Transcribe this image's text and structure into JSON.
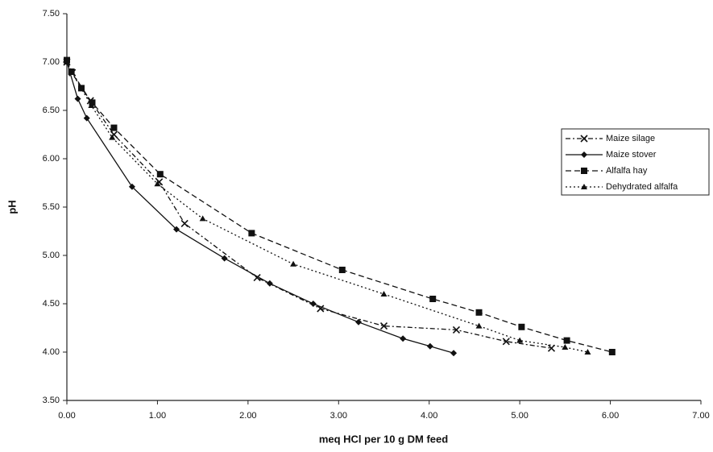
{
  "chart_data": {
    "type": "line",
    "x_label": "meq HCl per 10 g DM feed",
    "y_label": "pH",
    "xlim": [
      0,
      7
    ],
    "ylim": [
      3.5,
      7.5
    ],
    "xticks": [
      {
        "value": 0,
        "label": "0.00"
      },
      {
        "value": 1,
        "label": "1.00"
      },
      {
        "value": 2,
        "label": "2.00"
      },
      {
        "value": 3,
        "label": "3.00"
      },
      {
        "value": 4,
        "label": "4.00"
      },
      {
        "value": 5,
        "label": "5.00"
      },
      {
        "value": 6,
        "label": "6.00"
      },
      {
        "value": 7,
        "label": "7.00"
      }
    ],
    "yticks": [
      {
        "value": 3.5,
        "label": "3.50"
      },
      {
        "value": 4,
        "label": "4.00"
      },
      {
        "value": 4.5,
        "label": "4.50"
      },
      {
        "value": 5,
        "label": "5.00"
      },
      {
        "value": 5.5,
        "label": "5.50"
      },
      {
        "value": 6,
        "label": "6.00"
      },
      {
        "value": 6.5,
        "label": "6.50"
      },
      {
        "value": 7,
        "label": "7.00"
      },
      {
        "value": 7.5,
        "label": "7.50"
      }
    ],
    "series": [
      {
        "name": "Maize silage",
        "color": "#111111",
        "marker": "x",
        "dash": "6 3 2 3",
        "x": [
          0,
          0.06,
          0.26,
          0.52,
          1.02,
          1.3,
          2.1,
          2.8,
          3.5,
          4.3,
          4.85,
          5.35
        ],
        "values": [
          7.0,
          6.89,
          6.6,
          6.25,
          5.76,
          5.33,
          4.77,
          4.45,
          4.27,
          4.23,
          4.11,
          4.04
        ]
      },
      {
        "name": "Maize stover",
        "color": "#111111",
        "marker": "diamond",
        "dash": "none",
        "x": [
          0,
          0.12,
          0.22,
          0.72,
          1.21,
          1.74,
          2.24,
          2.72,
          3.22,
          3.71,
          4.01,
          4.27
        ],
        "values": [
          7.0,
          6.62,
          6.42,
          5.71,
          5.27,
          4.97,
          4.71,
          4.5,
          4.31,
          4.14,
          4.06,
          3.99
        ]
      },
      {
        "name": "Alfalfa hay",
        "color": "#111111",
        "marker": "square",
        "dash": "7 4",
        "x": [
          0,
          0.05,
          0.16,
          0.28,
          0.52,
          1.03,
          2.04,
          3.04,
          4.04,
          4.55,
          5.02,
          5.52,
          6.02
        ],
        "values": [
          7.02,
          6.9,
          6.73,
          6.58,
          6.32,
          5.84,
          5.23,
          4.85,
          4.55,
          4.41,
          4.26,
          4.12,
          4.0
        ]
      },
      {
        "name": "Dehydrated alfalfa",
        "color": "#111111",
        "marker": "triangle",
        "dash": "2 3",
        "x": [
          0,
          0.05,
          0.27,
          0.5,
          1.0,
          1.5,
          2.5,
          3.5,
          4.55,
          5.0,
          5.5,
          5.75
        ],
        "values": [
          7.0,
          6.9,
          6.55,
          6.22,
          5.74,
          5.38,
          4.91,
          4.6,
          4.27,
          4.12,
          4.05,
          4.0
        ]
      }
    ]
  }
}
